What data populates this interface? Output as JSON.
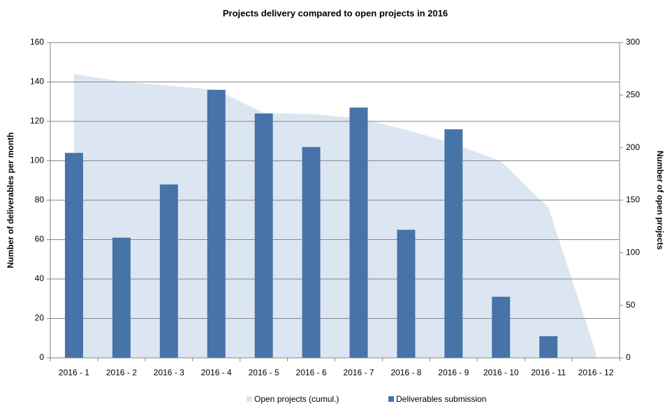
{
  "chart_data": {
    "type": "bar",
    "title": "Projects delivery compared to open projects in 2016",
    "ylabel": "Number of deliverables per month",
    "y2label": "Number of open projects",
    "categories": [
      "2016 - 1",
      "2016 - 2",
      "2016 - 3",
      "2016 - 4",
      "2016 - 5",
      "2016 - 6",
      "2016 - 7",
      "2016 - 8",
      "2016 - 9",
      "2016 - 10",
      "2016 - 11",
      "2016 - 12"
    ],
    "series": [
      {
        "name": "Open projects (cumul.)",
        "type": "area",
        "axis": "y2",
        "color": "#dce6f2",
        "values": [
          270,
          263,
          259,
          255,
          233,
          232,
          228,
          217,
          204,
          187,
          143,
          5
        ]
      },
      {
        "name": "Deliverables submission",
        "type": "bar",
        "color": "#4673a8",
        "values": [
          104,
          61,
          88,
          136,
          124,
          107,
          127,
          65,
          116,
          31,
          11,
          null
        ]
      }
    ],
    "ylim": [
      0,
      160
    ],
    "yticks": [
      0,
      20,
      40,
      60,
      80,
      100,
      120,
      140,
      160
    ],
    "y2lim": [
      0,
      300
    ],
    "y2ticks": [
      0,
      50,
      100,
      150,
      200,
      250,
      300
    ],
    "grid": true,
    "legend": "bottom"
  }
}
